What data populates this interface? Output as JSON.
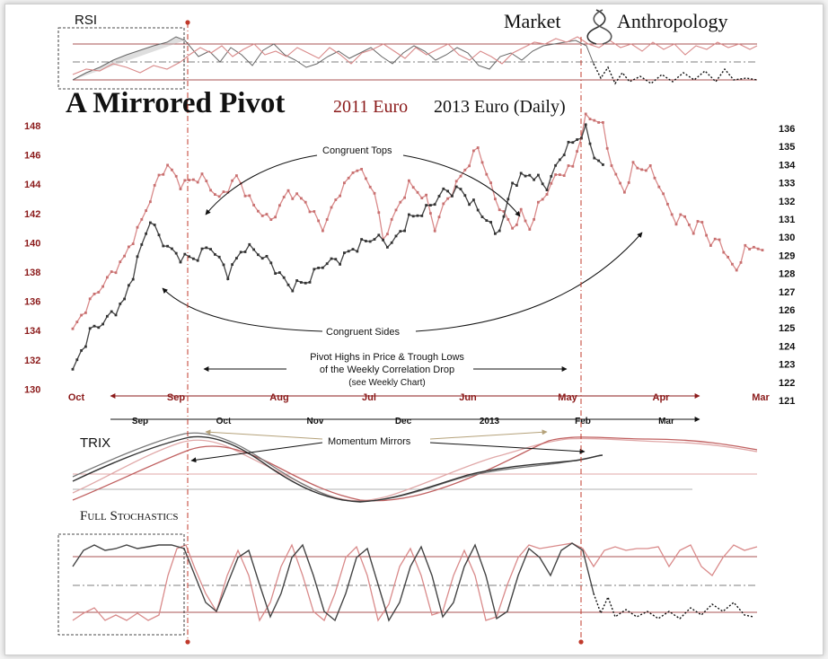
{
  "header": {
    "rsi_label": "RSI",
    "brand_left": "Market",
    "brand_right": "Anthropology",
    "title": "A Mirrored Pivot",
    "subtitle_red": "2011 Euro",
    "subtitle_dark": "2013 Euro (Daily)"
  },
  "colors": {
    "red": "#8b1a1a",
    "pink": "#d98a8a",
    "dark": "#222222",
    "guide": "#c0392b"
  },
  "chart_data": {
    "type": "line",
    "left_axis": {
      "ticks": [
        148,
        146,
        144,
        142,
        140,
        138,
        136,
        134,
        132,
        130
      ],
      "range": [
        130,
        149
      ]
    },
    "right_axis": {
      "ticks": [
        136,
        135,
        134,
        133,
        132,
        131,
        130,
        129,
        128,
        127,
        126,
        125,
        124,
        123,
        122,
        121
      ],
      "range": [
        121,
        136.5
      ]
    },
    "axis_2011_labels": [
      "Oct",
      "Sep",
      "Aug",
      "Jul",
      "Jun",
      "May",
      "Apr",
      "Mar"
    ],
    "axis_2013_labels": [
      "Sep",
      "Oct",
      "Nov",
      "Dec",
      "2013",
      "Feb",
      "Mar"
    ],
    "series": [
      {
        "name": "2011 Euro",
        "anchors": [
          [
            0,
            134.0
          ],
          [
            4,
            136.0
          ],
          [
            8,
            137.5
          ],
          [
            12,
            139.0
          ],
          [
            16,
            141.5
          ],
          [
            20,
            144.5
          ],
          [
            22,
            145.3
          ],
          [
            25,
            144.0
          ],
          [
            30,
            144.5
          ],
          [
            34,
            143.0
          ],
          [
            38,
            144.5
          ],
          [
            42,
            142.5
          ],
          [
            46,
            141.5
          ],
          [
            50,
            143.5
          ],
          [
            54,
            142.8
          ],
          [
            58,
            141.0
          ],
          [
            62,
            143.5
          ],
          [
            66,
            145.2
          ],
          [
            70,
            143.5
          ],
          [
            72,
            140.2
          ],
          [
            74,
            141.5
          ],
          [
            78,
            144.0
          ],
          [
            82,
            143.0
          ],
          [
            84,
            141.0
          ],
          [
            86,
            142.5
          ],
          [
            90,
            144.5
          ],
          [
            94,
            146.5
          ],
          [
            98,
            143.0
          ],
          [
            102,
            141.0
          ],
          [
            104,
            142.0
          ],
          [
            106,
            141.0
          ],
          [
            108,
            142.5
          ],
          [
            112,
            144.5
          ],
          [
            116,
            145.2
          ],
          [
            119,
            148.5
          ],
          [
            121,
            148.5
          ],
          [
            123,
            148.0
          ],
          [
            124,
            146.5
          ],
          [
            126,
            144.5
          ],
          [
            128,
            143.5
          ],
          [
            130,
            145.2
          ],
          [
            134,
            145.0
          ],
          [
            136,
            144.0
          ],
          [
            138,
            142.5
          ],
          [
            140,
            141.5
          ],
          [
            142,
            141.8
          ],
          [
            144,
            140.8
          ],
          [
            146,
            141.5
          ],
          [
            148,
            139.8
          ],
          [
            150,
            140.3
          ],
          [
            152,
            138.8
          ],
          [
            154,
            138.2
          ],
          [
            156,
            139.5
          ],
          [
            158,
            139.8
          ],
          [
            160,
            139.5
          ]
        ]
      },
      {
        "name": "2013 Euro",
        "anchors": [
          [
            0,
            122.6
          ],
          [
            4,
            124.8
          ],
          [
            8,
            125.5
          ],
          [
            12,
            126.5
          ],
          [
            16,
            129.5
          ],
          [
            18,
            131.0
          ],
          [
            20,
            130.0
          ],
          [
            24,
            129.0
          ],
          [
            28,
            128.8
          ],
          [
            32,
            129.5
          ],
          [
            36,
            128.0
          ],
          [
            40,
            129.5
          ],
          [
            44,
            129.0
          ],
          [
            48,
            128.0
          ],
          [
            50,
            127.3
          ],
          [
            54,
            127.5
          ],
          [
            58,
            128.5
          ],
          [
            62,
            128.8
          ],
          [
            66,
            129.5
          ],
          [
            70,
            130.0
          ],
          [
            74,
            129.6
          ],
          [
            78,
            131.0
          ],
          [
            82,
            131.5
          ],
          [
            86,
            132.5
          ],
          [
            90,
            132.6
          ],
          [
            94,
            131.5
          ],
          [
            96,
            131.0
          ],
          [
            98,
            130.2
          ],
          [
            100,
            131.0
          ],
          [
            102,
            133.0
          ],
          [
            106,
            133.5
          ],
          [
            110,
            132.8
          ],
          [
            114,
            134.8
          ],
          [
            116,
            135.2
          ],
          [
            119,
            135.9
          ],
          [
            121,
            134.5
          ],
          [
            123,
            134.0
          ]
        ]
      }
    ],
    "annotations": [
      "Congruent Tops",
      "Congruent Sides",
      "Pivot Highs in Price & Trough Lows",
      "of the  Weekly Correlation Drop",
      "(see Weekly Chart)",
      "Momentum Mirrors"
    ],
    "panels": [
      "RSI",
      "TRIX",
      "Full Stochastics"
    ]
  }
}
